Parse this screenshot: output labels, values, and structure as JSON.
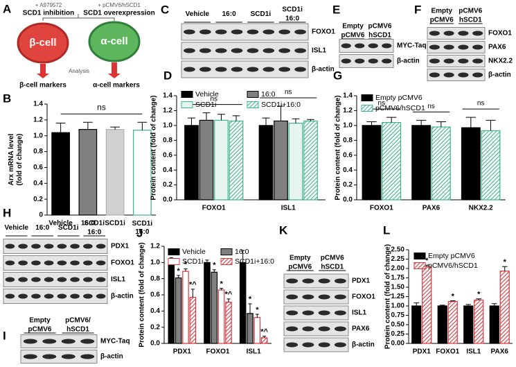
{
  "figure": {
    "panel_a": {
      "letter": "A",
      "left_treatment": "+ A979572",
      "left_action": "SCD1 inhibition",
      "right_treatment": "+ pCMV6/hSCD1",
      "right_action": "SCD1 overexpression",
      "left_cell": "β-cell",
      "right_cell": "α-cell",
      "analysis": "Analysis",
      "left_markers": "β-cell markers",
      "right_markers": "α-cell markers"
    },
    "blots": [
      {
        "letter": "C",
        "lanes": [
          "Vehicle",
          "16:0",
          "SCD1i",
          "SCD1i 16:0"
        ],
        "rows": [
          "FOXO1",
          "ISL1",
          "β-actin"
        ]
      },
      {
        "letter": "E",
        "lanes": [
          "Empty pCMV6",
          "pCMV6 hSCD1"
        ],
        "rows": [
          "MYC-Taq",
          "β-actin"
        ]
      },
      {
        "letter": "F",
        "lanes": [
          "Empty pCMV6",
          "pCMV6 hSCD1"
        ],
        "rows": [
          "FOXO1",
          "PAX6",
          "NKX2.2",
          "β-actin"
        ]
      },
      {
        "letter": "H",
        "lanes": [
          "Vehicle",
          "16:0",
          "SCD1i",
          "SCD1i 16:0"
        ],
        "rows": [
          "PDX1",
          "FOXO1",
          "ISL1",
          "β-actin"
        ]
      },
      {
        "letter": "I",
        "lanes": [
          "Empty pCMV6",
          "pCMV6/ hSCD1"
        ],
        "rows": [
          "MYC-Taq",
          "β-actin"
        ]
      },
      {
        "letter": "K",
        "lanes": [
          "Empty pCMV6",
          "pCMV6 hSCD1"
        ],
        "rows": [
          "PDX1",
          "FOXO1",
          "ISL1",
          "PAX6",
          "β-actin"
        ]
      }
    ]
  },
  "chart_data": [
    {
      "type": "bar",
      "panel": "B",
      "ylabel": "Arx mRNA level (fold of change)",
      "categories": [
        "Vehicle",
        "16:0",
        "SCD1i",
        "SCD1i 16:0"
      ],
      "values": [
        1.04,
        1.08,
        1.08,
        1.07
      ],
      "errors": [
        0.12,
        0.09,
        0.03,
        0.1
      ],
      "colors": [
        "#000000",
        "#808080",
        "#d0d0d0",
        "#ffffff"
      ],
      "edgecolors": [
        "#000000",
        "#000000",
        "#b0b0b0",
        "#3cb489"
      ],
      "annotation": "ns",
      "ylim": [
        0,
        1.4
      ],
      "yticks": [
        0,
        0.2,
        0.4,
        0.6,
        0.8,
        {
          "value": 1,
          "label": "1.0"
        },
        1.2,
        1.4
      ]
    },
    {
      "type": "bar",
      "panel": "D",
      "ylabel": "Protein content (fold of change)",
      "categories": [
        "FOXO1",
        "ISL1"
      ],
      "series": [
        {
          "name": "Vehicle",
          "color": "#000000",
          "edgecolor": "#000000",
          "hatch": false,
          "values": [
            1.0,
            1.0
          ],
          "errors": [
            0.1,
            0.1
          ]
        },
        {
          "name": "16:0",
          "color": "#808080",
          "edgecolor": "#000000",
          "hatch": false,
          "values": [
            1.07,
            1.06
          ],
          "errors": [
            0.1,
            0.2
          ]
        },
        {
          "name": "SCD1i",
          "color": "#e6f5ee",
          "edgecolor": "#3cb489",
          "hatch": false,
          "values": [
            1.07,
            1.03
          ],
          "errors": [
            0.08,
            0.06
          ]
        },
        {
          "name": "SCD1i+16:0",
          "color": "#3cb489",
          "edgecolor": "#3cb489",
          "hatch": true,
          "values": [
            1.06,
            1.06
          ],
          "errors": [
            0.07,
            0.02
          ]
        }
      ],
      "group_annotations": [
        "ns",
        "ns"
      ],
      "ylim": [
        0,
        1.4
      ],
      "yticks": [
        {
          "value": 0,
          "label": "0.0"
        },
        0.2,
        0.4,
        0.6,
        0.8,
        {
          "value": 1,
          "label": "1.0"
        },
        1.2,
        1.4
      ]
    },
    {
      "type": "bar",
      "panel": "G",
      "ylabel": "Protein content (fold of change)",
      "categories": [
        "FOXO1",
        "PAX6",
        "NKX2.2"
      ],
      "series": [
        {
          "name": "Empty pCMV6",
          "color": "#000000",
          "edgecolor": "#000000",
          "hatch": false,
          "values": [
            1.0,
            1.0,
            0.97
          ],
          "errors": [
            0.05,
            0.07,
            0.14
          ]
        },
        {
          "name": "pCMV6/hSCD1",
          "color": "#3cb489",
          "edgecolor": "#3cb489",
          "hatch": true,
          "values": [
            1.04,
            0.98,
            0.93
          ],
          "errors": [
            0.07,
            0.07,
            0.14
          ]
        }
      ],
      "group_annotations": [
        "ns",
        "ns",
        "ns"
      ],
      "ylim": [
        0,
        1.4
      ],
      "yticks": [
        {
          "value": 0,
          "label": "0.0"
        },
        0.2,
        0.4,
        0.6,
        0.8,
        {
          "value": 1,
          "label": "1.0"
        },
        1.2,
        1.4
      ]
    },
    {
      "type": "bar",
      "panel": "J",
      "ylabel": "Protein content (fold of change)",
      "categories": [
        "PDX1",
        "FOXO1",
        "ISL1"
      ],
      "series": [
        {
          "name": "Vehicle",
          "color": "#000000",
          "edgecolor": "#000000",
          "hatch": false,
          "values": [
            1.0,
            1.0,
            1.0
          ],
          "errors": [
            0.06,
            0.03,
            0.15
          ]
        },
        {
          "name": "16:0",
          "color": "#808080",
          "edgecolor": "#000000",
          "hatch": false,
          "values": [
            0.81,
            0.88,
            0.37
          ],
          "errors": [
            0.03,
            0.03,
            0.12
          ],
          "marks": [
            "*",
            "*",
            "*"
          ]
        },
        {
          "name": "SCD1i",
          "color": "#ffffff",
          "edgecolor": "#d9363e",
          "hatch": false,
          "values": [
            0.89,
            0.66,
            0.32
          ],
          "errors": [
            0.03,
            0.02,
            0.04
          ],
          "marks": [
            "*",
            "*",
            "*"
          ]
        },
        {
          "name": "SCD1i+16:0",
          "color": "#d9363e",
          "edgecolor": "#d9363e",
          "hatch": true,
          "values": [
            0.57,
            0.51,
            0.07
          ],
          "errors": [
            0.1,
            0.04,
            0.02
          ],
          "marks": [
            "*^",
            "*^",
            "*^"
          ]
        }
      ],
      "ylim": [
        0,
        1.2
      ],
      "yticks": [
        {
          "value": 0,
          "label": "0.0"
        },
        0.2,
        0.4,
        0.6,
        0.8,
        {
          "value": 1,
          "label": "1.0"
        },
        1.2
      ]
    },
    {
      "type": "bar",
      "panel": "L",
      "ylabel": "Protein content (fold of change)",
      "categories": [
        "PDX1",
        "FOXO1",
        "ISL1",
        "PAX6"
      ],
      "series": [
        {
          "name": "Empty pCMV6",
          "color": "#000000",
          "edgecolor": "#000000",
          "hatch": false,
          "values": [
            1.0,
            1.0,
            1.0,
            1.0
          ],
          "errors": [
            0.08,
            0.02,
            0.04,
            0.06
          ]
        },
        {
          "name": "pCMV6/hSCD1",
          "color": "#d9363e",
          "edgecolor": "#d9363e",
          "hatch": true,
          "values": [
            2.05,
            1.12,
            1.16,
            1.93
          ],
          "errors": [
            0.04,
            0.02,
            0.03,
            0.12
          ],
          "marks": [
            "*",
            "*",
            "*",
            "*"
          ]
        }
      ],
      "ylim": [
        0,
        2.5
      ],
      "yticks": [
        {
          "value": 0,
          "label": "0.00"
        },
        0.25,
        {
          "value": 0.5,
          "label": "0.50"
        },
        0.75,
        {
          "value": 1,
          "label": "1.00"
        },
        1.25,
        {
          "value": 1.5,
          "label": "1.50"
        },
        1.75,
        {
          "value": 2,
          "label": "2.00"
        },
        2.25,
        {
          "value": 2.5,
          "label": "2.50"
        }
      ]
    }
  ]
}
